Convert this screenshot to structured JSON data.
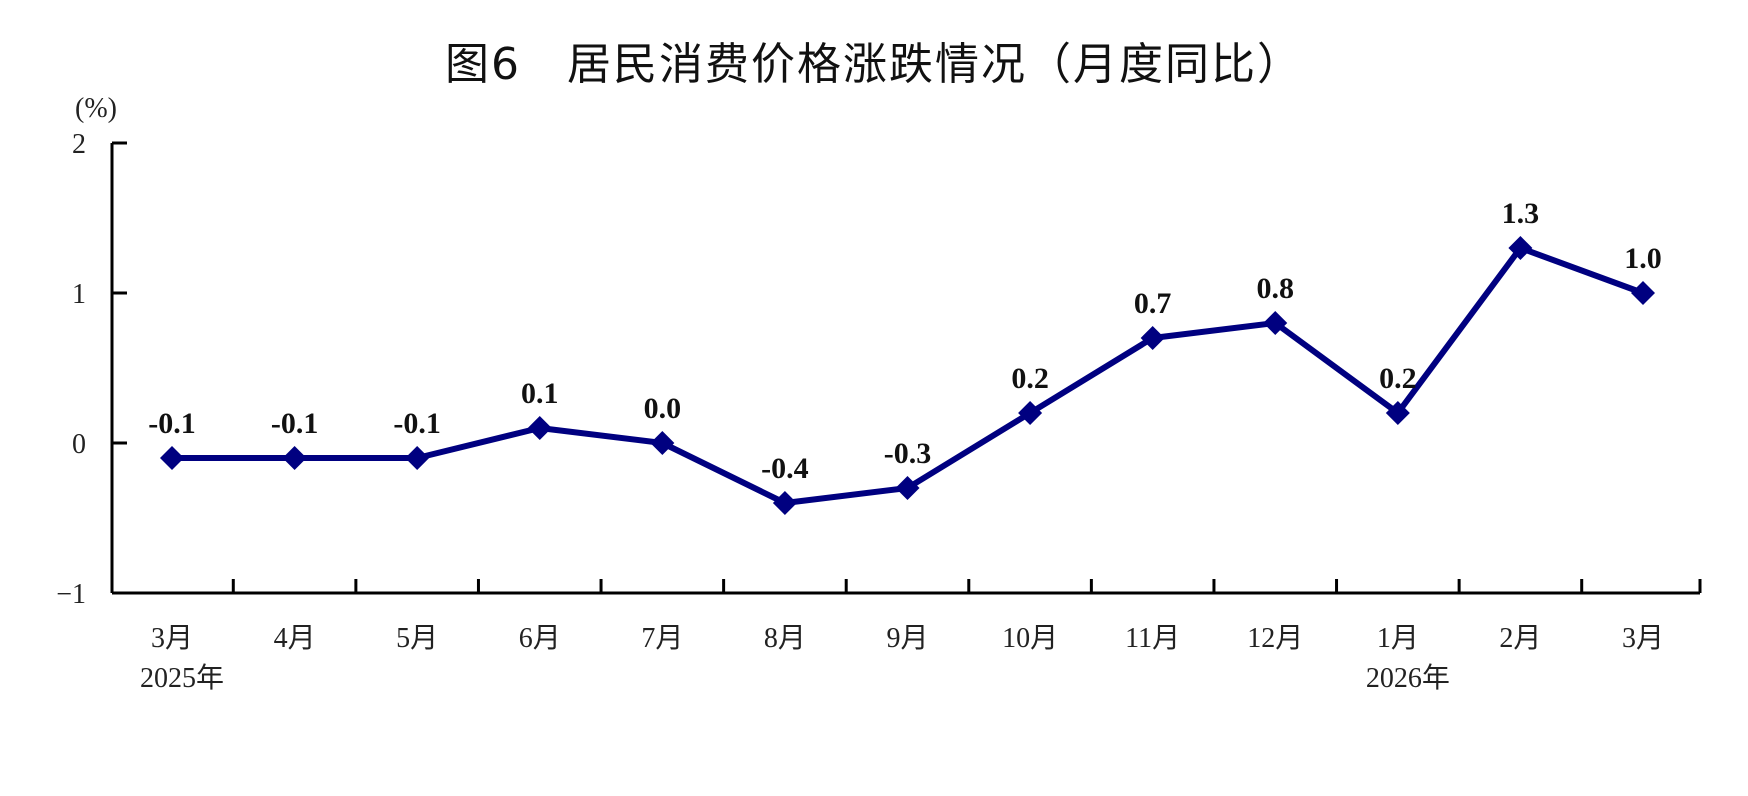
{
  "chart_data": {
    "type": "line",
    "title": "图6　居民消费价格涨跌情况（月度同比）",
    "ylabel": "(%)",
    "xlabel": "",
    "categories": [
      "3月",
      "4月",
      "5月",
      "6月",
      "7月",
      "8月",
      "9月",
      "10月",
      "11月",
      "12月",
      "1月",
      "2月",
      "3月"
    ],
    "year_labels": [
      {
        "index": 0,
        "text": "2025年"
      },
      {
        "index": 10,
        "text": "2026年"
      }
    ],
    "series": [
      {
        "values": [
          -0.1,
          -0.1,
          -0.1,
          0.1,
          0.0,
          -0.4,
          -0.3,
          0.2,
          0.7,
          0.8,
          0.2,
          1.3,
          1.0
        ]
      }
    ],
    "data_labels": [
      "-0.1",
      "-0.1",
      "-0.1",
      "0.1",
      "0.0",
      "-0.4",
      "-0.3",
      "0.2",
      "0.7",
      "0.8",
      "0.2",
      "1.3",
      "1.0"
    ],
    "ylim": [
      -1,
      2
    ],
    "yticks": [
      2,
      1,
      0,
      -1
    ],
    "ytick_labels": [
      "2",
      "1",
      "0",
      "−1"
    ],
    "grid": false,
    "marker": "diamond",
    "color": "#000080"
  }
}
